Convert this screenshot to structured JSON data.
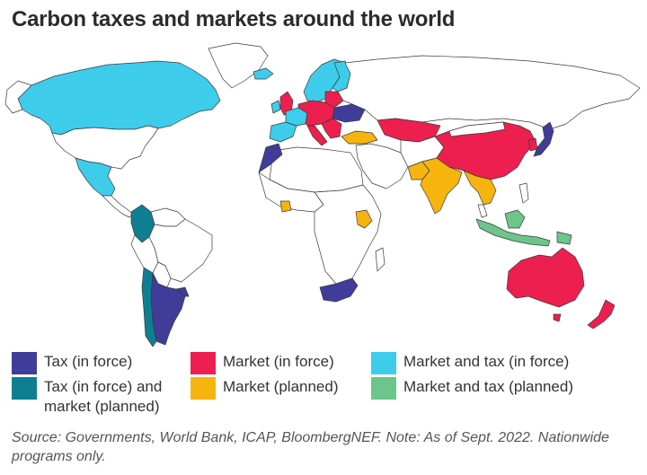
{
  "title": "Carbon taxes and markets around the world",
  "colors": {
    "tax": "#3f3d99",
    "tax_market_planned": "#0e7f93",
    "market": "#ec1f4e",
    "market_planned": "#f6b40e",
    "market_tax": "#3dcdeb",
    "market_tax_planned": "#6cc58a",
    "none": "#ffffff"
  },
  "legend": [
    {
      "label": "Tax (in force)",
      "color": "#3f3d99"
    },
    {
      "label": "Tax (in force) and\nmarket (planned)",
      "color": "#0e7f93"
    },
    {
      "label": "Market (in force)",
      "color": "#ec1f4e"
    },
    {
      "label": "Market (planned)",
      "color": "#f6b40e"
    },
    {
      "label": "Market and tax (in force)",
      "color": "#3dcdeb"
    },
    {
      "label": "Market and tax (planned)",
      "color": "#6cc58a"
    }
  ],
  "source": "Source: Governments, World Bank, ICAP, BloombergNEF. Note: As of Sept. 2022. Nationwide programs only."
}
